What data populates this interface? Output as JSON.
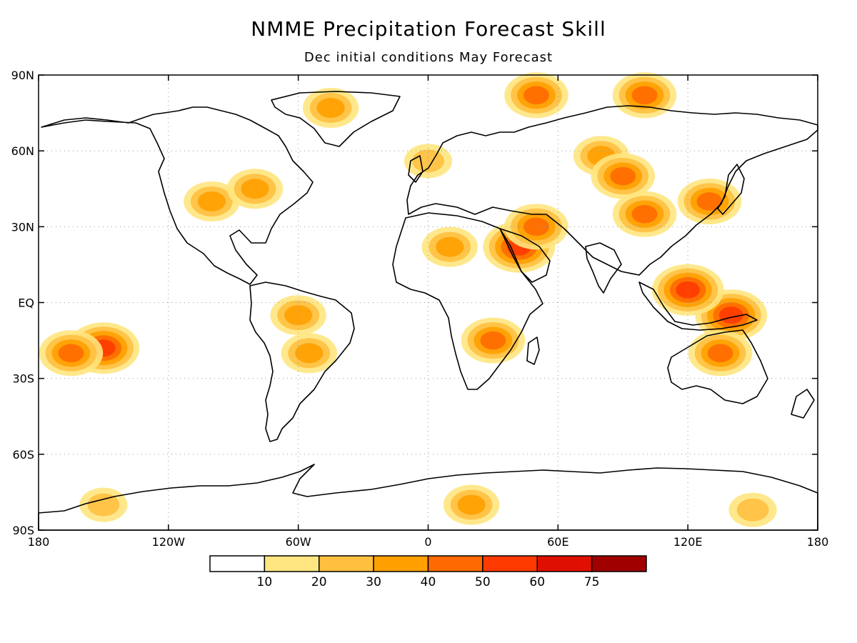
{
  "title": "NMME Precipitation Forecast Skill",
  "subtitle": "Dec initial conditions   May Forecast",
  "map": {
    "projection": "equirectangular",
    "lon_range": [
      -180,
      180
    ],
    "lat_range": [
      -90,
      90
    ],
    "grid": "dotted",
    "x_ticks": [
      {
        "lon": -180,
        "label": "180"
      },
      {
        "lon": -120,
        "label": "120W"
      },
      {
        "lon": -60,
        "label": "60W"
      },
      {
        "lon": 0,
        "label": "0"
      },
      {
        "lon": 60,
        "label": "60E"
      },
      {
        "lon": 120,
        "label": "120E"
      },
      {
        "lon": 180,
        "label": "180"
      }
    ],
    "y_ticks": [
      {
        "lat": 90,
        "label": "90N"
      },
      {
        "lat": 60,
        "label": "60N"
      },
      {
        "lat": 30,
        "label": "30N"
      },
      {
        "lat": 0,
        "label": "EQ"
      },
      {
        "lat": -30,
        "label": "30S"
      },
      {
        "lat": -60,
        "label": "60S"
      },
      {
        "lat": -90,
        "label": "90S"
      }
    ]
  },
  "colorbar": {
    "bins": [
      {
        "color": "#ffffff",
        "label": "10"
      },
      {
        "color": "#ffe680",
        "label": "20"
      },
      {
        "color": "#ffc040",
        "label": "30"
      },
      {
        "color": "#ffa000",
        "label": "40"
      },
      {
        "color": "#ff6a00",
        "label": "50"
      },
      {
        "color": "#ff3a00",
        "label": "60"
      },
      {
        "color": "#e01000",
        "label": "75"
      },
      {
        "color": "#a00000",
        "label": ""
      }
    ]
  },
  "skill_regions": [
    {
      "lon": 0,
      "lat": 56,
      "level": 2
    },
    {
      "lon": 80,
      "lat": 58,
      "level": 3
    },
    {
      "lon": 130,
      "lat": 40,
      "level": 4
    },
    {
      "lon": 140,
      "lat": -5,
      "level": 5
    },
    {
      "lon": 120,
      "lat": 5,
      "level": 5
    },
    {
      "lon": 42,
      "lat": 22,
      "level": 5
    },
    {
      "lon": 10,
      "lat": 22,
      "level": 3
    },
    {
      "lon": 30,
      "lat": -15,
      "level": 4
    },
    {
      "lon": -100,
      "lat": 40,
      "level": 3
    },
    {
      "lon": -80,
      "lat": 45,
      "level": 3
    },
    {
      "lon": -60,
      "lat": -5,
      "level": 3
    },
    {
      "lon": -55,
      "lat": -20,
      "level": 3
    },
    {
      "lon": -150,
      "lat": -18,
      "level": 5
    },
    {
      "lon": -165,
      "lat": -20,
      "level": 4
    },
    {
      "lon": 20,
      "lat": -80,
      "level": 3
    },
    {
      "lon": -150,
      "lat": -80,
      "level": 2
    },
    {
      "lon": 150,
      "lat": -82,
      "level": 2
    },
    {
      "lon": 50,
      "lat": 82,
      "level": 4
    },
    {
      "lon": 100,
      "lat": 82,
      "level": 4
    },
    {
      "lon": -45,
      "lat": 77,
      "level": 3
    },
    {
      "lon": 50,
      "lat": 30,
      "level": 4
    },
    {
      "lon": 100,
      "lat": 35,
      "level": 4
    },
    {
      "lon": 90,
      "lat": 50,
      "level": 4
    },
    {
      "lon": 135,
      "lat": -20,
      "level": 4
    }
  ]
}
